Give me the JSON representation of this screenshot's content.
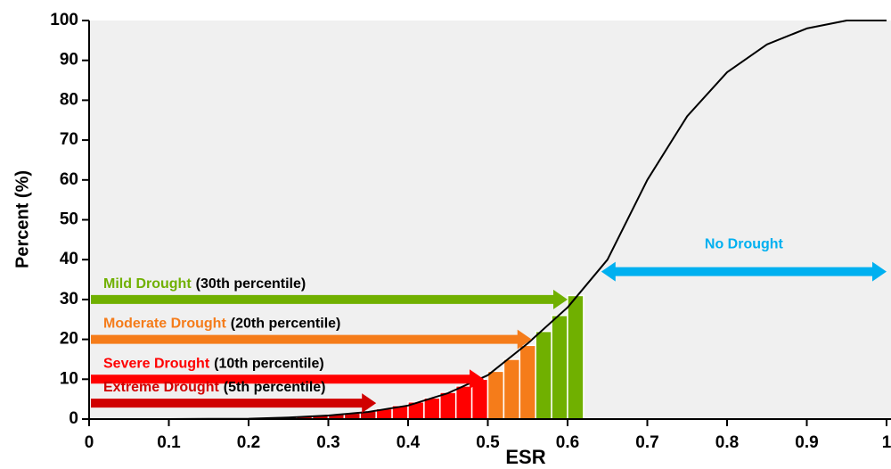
{
  "chart_data": {
    "type": "line",
    "x_label": "ESR",
    "y_label": "Percent (%)",
    "xlim": [
      0,
      1
    ],
    "ylim": [
      0,
      100
    ],
    "xticks": [
      0,
      0.1,
      0.2,
      0.3,
      0.4,
      0.5,
      0.6,
      0.7,
      0.8,
      0.9,
      1
    ],
    "yticks": [
      0,
      10,
      20,
      30,
      40,
      50,
      60,
      70,
      80,
      90,
      100
    ],
    "grid": false,
    "line": {
      "color": "#000000",
      "x": [
        0,
        0.05,
        0.1,
        0.15,
        0.2,
        0.25,
        0.3,
        0.35,
        0.4,
        0.45,
        0.5,
        0.55,
        0.6,
        0.65,
        0.7,
        0.75,
        0.8,
        0.85,
        0.9,
        0.95,
        1
      ],
      "values": [
        0,
        0,
        0,
        0.05,
        0.1,
        0.4,
        0.9,
        1.8,
        3.4,
        6.5,
        11,
        19,
        28,
        40,
        60,
        76,
        87,
        94,
        98,
        100,
        100
      ]
    },
    "bars": [
      {
        "color": "#d00000",
        "bins": [
          0.2,
          0.22,
          0.24,
          0.26,
          0.28,
          0.3,
          0.32,
          0.34,
          0.36
        ],
        "values": [
          0.2,
          0.3,
          0.5,
          0.7,
          0.9,
          1.2,
          1.5,
          2
        ]
      },
      {
        "color": "#ff0000",
        "bins": [
          0.36,
          0.38,
          0.4,
          0.42,
          0.44,
          0.46,
          0.48,
          0.5
        ],
        "values": [
          2.6,
          3.4,
          4.3,
          5.3,
          6.7,
          8.3,
          10
        ]
      },
      {
        "color": "#f57c1a",
        "bins": [
          0.5,
          0.52,
          0.54,
          0.56
        ],
        "values": [
          12,
          15,
          18.5
        ]
      },
      {
        "color": "#70b000",
        "bins": [
          0.56,
          0.58,
          0.6,
          0.62
        ],
        "values": [
          22,
          26,
          31
        ]
      }
    ],
    "annotations": [
      {
        "label": "Mild Drought",
        "note": "(30th percentile)",
        "color": "#70b000",
        "y": 30,
        "x": [
          0,
          0.6
        ],
        "double": false
      },
      {
        "label": "Moderate Drought",
        "note": "(20th percentile)",
        "color": "#f57c1a",
        "y": 20,
        "x": [
          0,
          0.555
        ],
        "double": false
      },
      {
        "label": "Severe Drought",
        "note": "(10th percentile)",
        "color": "#ff0000",
        "y": 10,
        "x": [
          0,
          0.495
        ],
        "double": false
      },
      {
        "label": "Extreme Drought",
        "note": "(5th percentile)",
        "color": "#d00000",
        "y": 4,
        "x": [
          0,
          0.36
        ],
        "double": false
      },
      {
        "label": "No Drought",
        "color": "#00b0f0",
        "y": 37,
        "x": [
          0.64,
          1
        ],
        "double": true
      }
    ]
  }
}
